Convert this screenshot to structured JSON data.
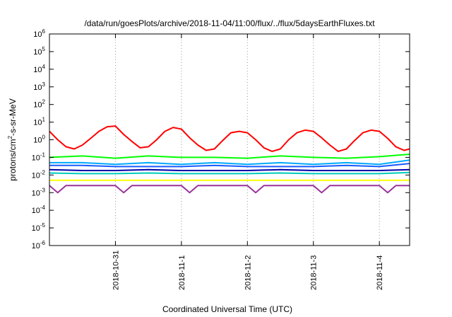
{
  "chart_data": {
    "type": "line",
    "title": "/data/run/goesPlots/archive/2018-11-04/11:00/flux/../flux/5daysEarthFluxes.txt",
    "xlabel": "Coordinated Universal Time (UTC)",
    "ylabel": "protons/cm²-s-sr-MeV",
    "y_scale": "log",
    "ylim": [
      1e-06,
      1000000.0
    ],
    "y_ticks": [
      {
        "value": 1e-06,
        "base": "10",
        "exp": "-6"
      },
      {
        "value": 1e-05,
        "base": "10",
        "exp": "-5"
      },
      {
        "value": 0.0001,
        "base": "10",
        "exp": "-4"
      },
      {
        "value": 0.001,
        "base": "10",
        "exp": "-3"
      },
      {
        "value": 0.01,
        "base": "10",
        "exp": "-2"
      },
      {
        "value": 0.1,
        "base": "10",
        "exp": "-1"
      },
      {
        "value": 1,
        "base": "10",
        "exp": "0"
      },
      {
        "value": 10,
        "base": "10",
        "exp": "1"
      },
      {
        "value": 100,
        "base": "10",
        "exp": "2"
      },
      {
        "value": 1000,
        "base": "10",
        "exp": "3"
      },
      {
        "value": 10000,
        "base": "10",
        "exp": "4"
      },
      {
        "value": 100000,
        "base": "10",
        "exp": "5"
      },
      {
        "value": 1000000,
        "base": "10",
        "exp": "6"
      }
    ],
    "xlim": [
      "2018-10-30T00:00",
      "2018-11-04T11:00"
    ],
    "x_ticks": [
      "2018-10-31",
      "2018-11-1",
      "2018-11-2",
      "2018-11-3",
      "2018-11-4"
    ],
    "x_tick_dates": [
      "2018-10-31T00:00",
      "2018-11-01T00:00",
      "2018-11-02T00:00",
      "2018-11-03T00:00",
      "2018-11-04T00:00"
    ],
    "x_grid": "dotted vertical at each date tick",
    "series": [
      {
        "color": "#ff0000",
        "x": [
          "2018-10-30T00:00",
          "2018-10-30T03:00",
          "2018-10-30T06:00",
          "2018-10-30T09:00",
          "2018-10-30T12:00",
          "2018-10-30T15:00",
          "2018-10-30T18:00",
          "2018-10-30T21:00",
          "2018-10-31T00:00",
          "2018-10-31T03:00",
          "2018-10-31T06:00",
          "2018-10-31T09:00",
          "2018-10-31T12:00",
          "2018-10-31T15:00",
          "2018-10-31T18:00",
          "2018-10-31T21:00",
          "2018-11-01T00:00",
          "2018-11-01T03:00",
          "2018-11-01T06:00",
          "2018-11-01T09:00",
          "2018-11-01T12:00",
          "2018-11-01T15:00",
          "2018-11-01T18:00",
          "2018-11-01T21:00",
          "2018-11-02T00:00",
          "2018-11-02T03:00",
          "2018-11-02T06:00",
          "2018-11-02T09:00",
          "2018-11-02T12:00",
          "2018-11-02T15:00",
          "2018-11-02T18:00",
          "2018-11-02T21:00",
          "2018-11-03T00:00",
          "2018-11-03T03:00",
          "2018-11-03T06:00",
          "2018-11-03T09:00",
          "2018-11-03T12:00",
          "2018-11-03T15:00",
          "2018-11-03T18:00",
          "2018-11-03T21:00",
          "2018-11-04T00:00",
          "2018-11-04T03:00",
          "2018-11-04T06:00",
          "2018-11-04T09:00",
          "2018-11-04T11:00"
        ],
        "values": [
          3.0,
          1.0,
          0.4,
          0.3,
          0.5,
          1.2,
          3.0,
          5.5,
          6.0,
          2.0,
          0.8,
          0.35,
          0.4,
          1.0,
          3.0,
          5.0,
          4.0,
          1.3,
          0.5,
          0.25,
          0.3,
          0.9,
          2.5,
          3.0,
          2.5,
          1.0,
          0.35,
          0.22,
          0.3,
          1.0,
          2.5,
          3.5,
          3.0,
          1.3,
          0.5,
          0.22,
          0.3,
          0.9,
          2.5,
          3.5,
          3.0,
          1.2,
          0.4,
          0.25,
          0.3
        ]
      },
      {
        "color": "#00ff00",
        "x": [
          "2018-10-30T00:00",
          "2018-10-30T12:00",
          "2018-10-31T00:00",
          "2018-10-31T12:00",
          "2018-11-01T00:00",
          "2018-11-01T12:00",
          "2018-11-02T00:00",
          "2018-11-02T12:00",
          "2018-11-03T00:00",
          "2018-11-03T12:00",
          "2018-11-04T00:00",
          "2018-11-04T11:00"
        ],
        "values": [
          0.1,
          0.12,
          0.09,
          0.12,
          0.1,
          0.1,
          0.09,
          0.12,
          0.1,
          0.09,
          0.11,
          0.15
        ]
      },
      {
        "color": "#00aaff",
        "x": [
          "2018-10-30T00:00",
          "2018-10-30T12:00",
          "2018-10-31T00:00",
          "2018-10-31T12:00",
          "2018-11-01T00:00",
          "2018-11-01T12:00",
          "2018-11-02T00:00",
          "2018-11-02T12:00",
          "2018-11-03T00:00",
          "2018-11-03T12:00",
          "2018-11-04T00:00",
          "2018-11-04T11:00"
        ],
        "values": [
          0.05,
          0.05,
          0.04,
          0.05,
          0.04,
          0.05,
          0.04,
          0.05,
          0.04,
          0.05,
          0.04,
          0.07
        ]
      },
      {
        "color": "#1a5aff",
        "x": [
          "2018-10-30T00:00",
          "2018-10-30T12:00",
          "2018-10-31T00:00",
          "2018-10-31T12:00",
          "2018-11-01T00:00",
          "2018-11-01T12:00",
          "2018-11-02T00:00",
          "2018-11-02T12:00",
          "2018-11-03T00:00",
          "2018-11-03T12:00",
          "2018-11-04T00:00",
          "2018-11-04T11:00"
        ],
        "values": [
          0.035,
          0.035,
          0.03,
          0.03,
          0.03,
          0.035,
          0.03,
          0.03,
          0.03,
          0.035,
          0.03,
          0.045
        ]
      },
      {
        "color": "#00ccbb",
        "x": [
          "2018-10-30T00:00",
          "2018-10-30T12:00",
          "2018-10-31T00:00",
          "2018-10-31T12:00",
          "2018-11-01T00:00",
          "2018-11-01T12:00",
          "2018-11-02T00:00",
          "2018-11-02T12:00",
          "2018-11-03T00:00",
          "2018-11-03T12:00",
          "2018-11-04T00:00",
          "2018-11-04T11:00"
        ],
        "values": [
          0.013,
          0.012,
          0.012,
          0.013,
          0.012,
          0.012,
          0.012,
          0.013,
          0.012,
          0.012,
          0.012,
          0.014
        ]
      },
      {
        "color": "#0000aa",
        "x": [
          "2018-10-30T00:00",
          "2018-10-30T12:00",
          "2018-10-31T00:00",
          "2018-10-31T12:00",
          "2018-11-01T00:00",
          "2018-11-01T12:00",
          "2018-11-02T00:00",
          "2018-11-02T12:00",
          "2018-11-03T00:00",
          "2018-11-03T12:00",
          "2018-11-04T00:00",
          "2018-11-04T11:00"
        ],
        "values": [
          0.02,
          0.018,
          0.018,
          0.02,
          0.018,
          0.018,
          0.018,
          0.02,
          0.018,
          0.018,
          0.018,
          0.02
        ]
      },
      {
        "color": "#ffff00",
        "x": [
          "2018-10-30T00:00",
          "2018-10-30T12:00",
          "2018-10-31T00:00",
          "2018-10-31T12:00",
          "2018-11-01T00:00",
          "2018-11-01T12:00",
          "2018-11-02T00:00",
          "2018-11-02T12:00",
          "2018-11-03T00:00",
          "2018-11-03T12:00",
          "2018-11-04T00:00",
          "2018-11-04T11:00"
        ],
        "values": [
          0.005,
          0.005,
          0.005,
          0.005,
          0.005,
          0.005,
          0.005,
          0.005,
          0.005,
          0.005,
          0.005,
          0.005
        ]
      },
      {
        "color": "#993399",
        "x": [
          "2018-10-30T00:00",
          "2018-10-30T03:00",
          "2018-10-30T06:00",
          "2018-10-30T12:00",
          "2018-10-31T00:00",
          "2018-10-31T03:00",
          "2018-10-31T06:00",
          "2018-10-31T12:00",
          "2018-11-01T00:00",
          "2018-11-01T03:00",
          "2018-11-01T06:00",
          "2018-11-01T12:00",
          "2018-11-02T00:00",
          "2018-11-02T03:00",
          "2018-11-02T06:00",
          "2018-11-02T12:00",
          "2018-11-03T00:00",
          "2018-11-03T03:00",
          "2018-11-03T06:00",
          "2018-11-03T12:00",
          "2018-11-04T00:00",
          "2018-11-04T03:00",
          "2018-11-04T06:00",
          "2018-11-04T11:00"
        ],
        "values": [
          0.0025,
          0.001,
          0.0025,
          0.0025,
          0.0025,
          0.001,
          0.0025,
          0.0025,
          0.0025,
          0.001,
          0.0025,
          0.0025,
          0.0025,
          0.001,
          0.0025,
          0.0025,
          0.0025,
          0.001,
          0.0025,
          0.0025,
          0.0025,
          0.001,
          0.0025,
          0.0025
        ]
      }
    ]
  }
}
